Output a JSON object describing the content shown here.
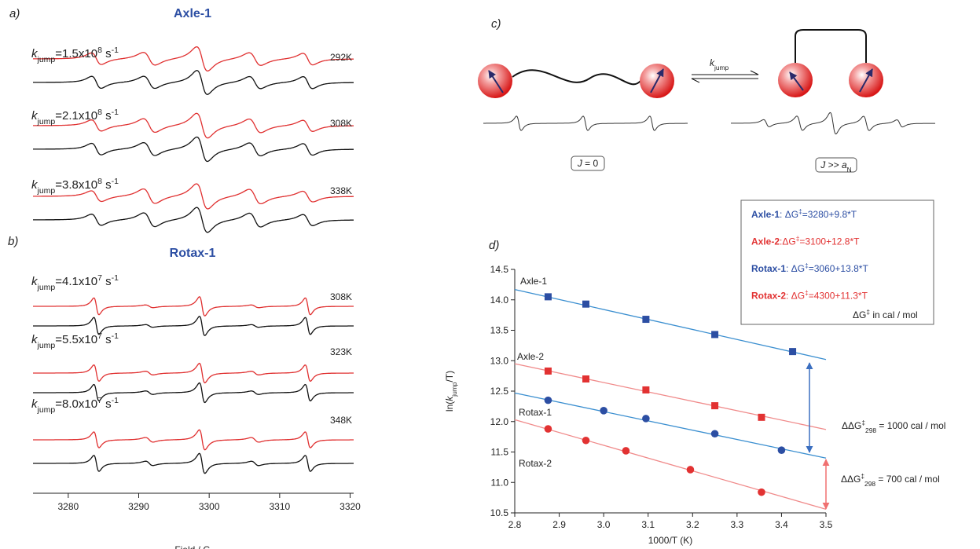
{
  "chart_data": [
    {
      "type": "spectra",
      "panel_label": "a)",
      "title": "Axle-1",
      "rows": [
        {
          "label": [
            {
              "t": "k",
              "s": "i"
            },
            {
              "t": "jump",
              "s": "sub"
            },
            {
              "t": "=1.5x10"
            },
            {
              "t": "8",
              "s": "sup"
            },
            {
              "t": " s"
            },
            {
              "t": "-1",
              "s": "sup"
            }
          ],
          "temperature": "292K"
        },
        {
          "label": [
            {
              "t": "k",
              "s": "i"
            },
            {
              "t": "jump",
              "s": "sub"
            },
            {
              "t": "=2.1x10"
            },
            {
              "t": "8",
              "s": "sup"
            },
            {
              "t": " s"
            },
            {
              "t": "-1",
              "s": "sup"
            }
          ],
          "temperature": "308K"
        },
        {
          "label": [
            {
              "t": "k",
              "s": "i"
            },
            {
              "t": "jump",
              "s": "sub"
            },
            {
              "t": "=3.8x10"
            },
            {
              "t": "8",
              "s": "sup"
            },
            {
              "t": " s"
            },
            {
              "t": "-1",
              "s": "sup"
            }
          ],
          "temperature": "338K"
        }
      ]
    },
    {
      "type": "spectra",
      "panel_label": "b)",
      "title": "Rotax-1",
      "xlim": [
        3275,
        3320.5
      ],
      "xticks": [
        3280,
        3290,
        3300,
        3310,
        3320
      ],
      "xlabel": "Field / G",
      "rows": [
        {
          "label": [
            {
              "t": "k",
              "s": "i"
            },
            {
              "t": "jump",
              "s": "sub"
            },
            {
              "t": "=4.1x10"
            },
            {
              "t": "7",
              "s": "sup"
            },
            {
              "t": " s"
            },
            {
              "t": "-1",
              "s": "sup"
            }
          ],
          "temperature": "308K"
        },
        {
          "label": [
            {
              "t": "k",
              "s": "i"
            },
            {
              "t": "jump",
              "s": "sub"
            },
            {
              "t": "=5.5x10"
            },
            {
              "t": "7",
              "s": "sup"
            },
            {
              "t": " s"
            },
            {
              "t": "-1",
              "s": "sup"
            }
          ],
          "temperature": "323K"
        },
        {
          "label": [
            {
              "t": "k",
              "s": "i"
            },
            {
              "t": "jump",
              "s": "sub"
            },
            {
              "t": "=8.0x10"
            },
            {
              "t": "7",
              "s": "sup"
            },
            {
              "t": " s"
            },
            {
              "t": "-1",
              "s": "sup"
            }
          ],
          "temperature": "348K"
        }
      ]
    },
    {
      "type": "scatter",
      "panel_label": "d)",
      "xlim": [
        2.8,
        3.5
      ],
      "ylim": [
        10.5,
        14.5
      ],
      "xticks": [
        2.8,
        2.9,
        {
          "value": 3,
          "label": "3.0"
        },
        3.1,
        3.2,
        3.3,
        3.4,
        3.5
      ],
      "yticks": [
        10.5,
        {
          "value": 11,
          "label": "11.0"
        },
        11.5,
        {
          "value": 12,
          "label": "12.0"
        },
        12.5,
        {
          "value": 13,
          "label": "13.0"
        },
        13.5,
        {
          "value": 14,
          "label": "14.0"
        },
        14.5
      ],
      "xlabel": [
        {
          "t": "1000/T (K)"
        }
      ],
      "ylabel": [
        {
          "t": "ln("
        },
        {
          "t": "k",
          "s": "i"
        },
        {
          "t": "jump",
          "s": "sub"
        },
        {
          "t": "/T)"
        }
      ],
      "series": [
        {
          "name": "Axle-1",
          "color": "#2c4ea3",
          "line_color": "#3b8fd0",
          "marker": "square",
          "x": [
            2.875,
            2.96,
            3.095,
            3.25,
            3.425
          ],
          "values": [
            14.05,
            13.93,
            13.68,
            13.43,
            13.15
          ],
          "fit": {
            "x": [
              2.8,
              3.5
            ],
            "y": [
              14.17,
              13.02
            ]
          }
        },
        {
          "name": "Axle-2",
          "color": "#e23232",
          "line_color": "#f08a8a",
          "marker": "square",
          "x": [
            2.875,
            2.96,
            3.095,
            3.25,
            3.355
          ],
          "values": [
            12.83,
            12.7,
            12.52,
            12.26,
            12.07
          ],
          "fit": {
            "x": [
              2.8,
              3.5
            ],
            "y": [
              12.95,
              11.87
            ]
          }
        },
        {
          "name": "Rotax-1",
          "color": "#2c4ea3",
          "line_color": "#3b8fd0",
          "marker": "circle",
          "x": [
            2.875,
            3.0,
            3.095,
            3.25,
            3.4
          ],
          "values": [
            12.35,
            12.18,
            12.05,
            11.8,
            11.53
          ],
          "fit": {
            "x": [
              2.8,
              3.5
            ],
            "y": [
              12.47,
              11.4
            ]
          }
        },
        {
          "name": "Rotax-2",
          "color": "#e23232",
          "line_color": "#f08a8a",
          "marker": "circle",
          "x": [
            2.875,
            2.96,
            3.05,
            3.195,
            3.355
          ],
          "values": [
            11.88,
            11.69,
            11.52,
            11.21,
            10.84
          ],
          "fit": {
            "x": [
              2.8,
              3.5
            ],
            "y": [
              12.03,
              10.56
            ]
          }
        }
      ],
      "legend": {
        "entries": [
          [
            {
              "t": "Axle-1",
              "s": "b",
              "c": "#2c4ea3"
            },
            {
              "t": ": ΔG",
              "c": "#2c4ea3"
            },
            {
              "t": "‡",
              "s": "sup",
              "c": "#2c4ea3"
            },
            {
              "t": "=3280+9.8*T",
              "c": "#2c4ea3"
            }
          ],
          [
            {
              "t": "Axle-2",
              "s": "b",
              "c": "#e23232"
            },
            {
              "t": ":ΔG",
              "c": "#e23232"
            },
            {
              "t": "‡",
              "s": "sup",
              "c": "#e23232"
            },
            {
              "t": "=3100+12.8*T",
              "c": "#e23232"
            }
          ],
          [
            {
              "t": "Rotax-1",
              "s": "b",
              "c": "#2c4ea3"
            },
            {
              "t": ": ΔG",
              "c": "#2c4ea3"
            },
            {
              "t": "‡",
              "s": "sup",
              "c": "#2c4ea3"
            },
            {
              "t": "=3060+13.8*T",
              "c": "#2c4ea3"
            }
          ],
          [
            {
              "t": "Rotax-2",
              "s": "b",
              "c": "#e23232"
            },
            {
              "t": ": ΔG",
              "c": "#e23232"
            },
            {
              "t": "‡",
              "s": "sup",
              "c": "#e23232"
            },
            {
              "t": "=4300+11.3*T",
              "c": "#e23232"
            }
          ]
        ],
        "note": [
          {
            "t": "ΔG"
          },
          {
            "t": "‡",
            "s": "sup"
          },
          {
            "t": " in cal / mol"
          }
        ]
      },
      "annotations": [
        {
          "color": "#2c4ea3",
          "text": [
            {
              "t": "ΔΔG"
            },
            {
              "t": "‡",
              "s": "sup"
            },
            {
              "t": "298",
              "s": "sub"
            },
            {
              "t": " = 1000 cal / mol"
            }
          ]
        },
        {
          "color": "#e23232",
          "text": [
            {
              "t": "ΔΔG"
            },
            {
              "t": "‡",
              "s": "sup"
            },
            {
              "t": "298",
              "s": "sub"
            },
            {
              "t": " = 700 cal / mol"
            }
          ]
        }
      ]
    }
  ],
  "diagram": {
    "panel_label": "c)",
    "rate_label": [
      {
        "t": "k",
        "s": "i"
      },
      {
        "t": "jump",
        "s": "sub"
      }
    ],
    "states": [
      {
        "label": [
          {
            "t": "J",
            "s": "i"
          },
          {
            "t": " = 0"
          }
        ]
      },
      {
        "label": [
          {
            "t": "J",
            "s": "i"
          },
          {
            "t": " >> "
          },
          {
            "t": "a",
            "s": "i"
          },
          {
            "t": "N",
            "s": "sub"
          }
        ]
      }
    ]
  }
}
